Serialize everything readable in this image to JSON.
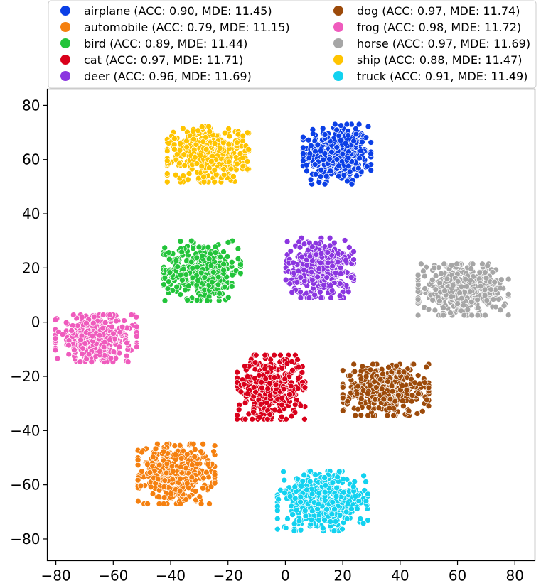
{
  "chart_data": {
    "type": "scatter",
    "title": "",
    "xlabel": "",
    "ylabel": "",
    "xlim": [
      -83,
      87
    ],
    "ylim": [
      -88,
      86
    ],
    "x_ticks": [
      -80,
      -60,
      -40,
      -20,
      0,
      20,
      40,
      60,
      80
    ],
    "y_ticks": [
      -80,
      -60,
      -40,
      -20,
      0,
      20,
      40,
      60,
      80
    ],
    "x_tick_labels": [
      "−80",
      "−60",
      "−40",
      "−20",
      "0",
      "20",
      "40",
      "60",
      "80"
    ],
    "y_tick_labels": [
      "−80",
      "−60",
      "−40",
      "−20",
      "0",
      "20",
      "40",
      "60",
      "80"
    ],
    "grid": false,
    "legend_position": "top",
    "series": [
      {
        "name": "airplane",
        "label": "airplane (ACC: 0.90, MDE: 11.45)",
        "color": "#0b3fe6",
        "center": [
          18,
          62
        ],
        "spread": [
          7.5,
          7
        ],
        "count": 420
      },
      {
        "name": "automobile",
        "label": "automobile (ACC: 0.79, MDE: 11.15)",
        "color": "#f5800f",
        "center": [
          -38,
          -56
        ],
        "spread": [
          8.5,
          7
        ],
        "count": 420
      },
      {
        "name": "bird",
        "label": "bird (ACC: 0.89, MDE: 11.44)",
        "color": "#22c43a",
        "center": [
          -29,
          19
        ],
        "spread": [
          8.5,
          7
        ],
        "count": 420
      },
      {
        "name": "cat",
        "label": "cat (ACC: 0.97, MDE: 11.71)",
        "color": "#d9001b",
        "center": [
          -5,
          -24
        ],
        "spread": [
          7.5,
          7.5
        ],
        "count": 420
      },
      {
        "name": "deer",
        "label": "deer (ACC: 0.96, MDE: 11.69)",
        "color": "#8b35e0",
        "center": [
          12,
          20
        ],
        "spread": [
          7.5,
          7
        ],
        "count": 420
      },
      {
        "name": "dog",
        "label": "dog (ACC: 0.97, MDE: 11.74)",
        "color": "#9c4a0a",
        "center": [
          35,
          -25
        ],
        "spread": [
          9.5,
          6
        ],
        "count": 420
      },
      {
        "name": "frog",
        "label": "frog (ACC: 0.98, MDE: 11.72)",
        "color": "#ef5bbd",
        "center": [
          -66,
          -6
        ],
        "spread": [
          9,
          5.5
        ],
        "count": 420
      },
      {
        "name": "horse",
        "label": "horse (ACC: 0.97, MDE: 11.69)",
        "color": "#a6a6a6",
        "center": [
          62,
          12
        ],
        "spread": [
          10,
          6
        ],
        "count": 420
      },
      {
        "name": "ship",
        "label": "ship (ACC: 0.88, MDE: 11.47)",
        "color": "#ffc400",
        "center": [
          -27,
          62
        ],
        "spread": [
          9,
          6.5
        ],
        "count": 420
      },
      {
        "name": "truck",
        "label": "truck (ACC: 0.91, MDE: 11.49)",
        "color": "#12d2f0",
        "center": [
          13,
          -66
        ],
        "spread": [
          10,
          7
        ],
        "count": 420
      }
    ]
  }
}
